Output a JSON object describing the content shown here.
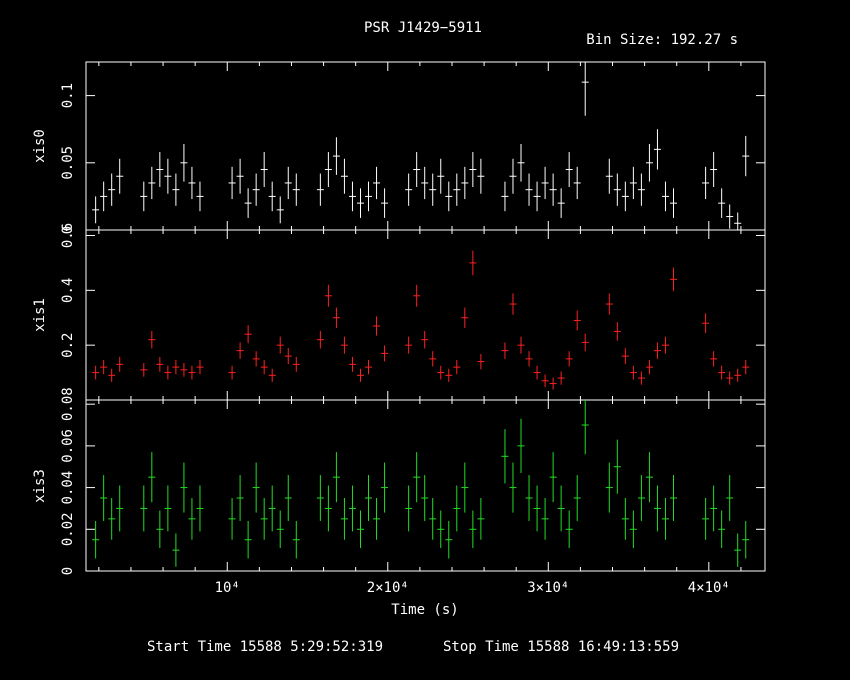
{
  "header": {
    "title": "PSR J1429−5911",
    "bin_size": "Bin Size: 192.27 s"
  },
  "footer": {
    "start_time": "Start Time 15588  5:29:52:319",
    "stop_time": "Stop Time 15588 16:49:13:559"
  },
  "colors": {
    "xis0": "#ffffff",
    "xis1": "#ff2020",
    "xis3": "#22dd22",
    "axes": "#ffffff",
    "background": "#000000"
  },
  "chart_data": {
    "type": "scatter",
    "title": "PSR J1429−5911",
    "subtitle": "Bin Size: 192.27 s",
    "xlabel": "Time (s)",
    "xlim": [
      1200,
      43500
    ],
    "x_ticks": [
      {
        "value": 10000,
        "label": "10⁴"
      },
      {
        "value": 20000,
        "label": "2×10⁴"
      },
      {
        "value": 30000,
        "label": "3×10⁴"
      },
      {
        "value": 40000,
        "label": "4×10⁴"
      }
    ],
    "legend": "none",
    "grid": false,
    "panels": [
      {
        "name": "xis0",
        "ylabel": "xis0",
        "ylim": [
          0,
          0.125
        ],
        "y_ticks": [
          {
            "value": 0,
            "label": "0"
          },
          {
            "value": 0.05,
            "label": "0.05"
          },
          {
            "value": 0.1,
            "label": "0.1"
          }
        ],
        "points": [
          [
            1800,
            0.015,
            0.01
          ],
          [
            2300,
            0.025,
            0.011
          ],
          [
            2800,
            0.03,
            0.012
          ],
          [
            3300,
            0.04,
            0.013
          ],
          [
            4800,
            0.025,
            0.011
          ],
          [
            5300,
            0.035,
            0.012
          ],
          [
            5800,
            0.045,
            0.013
          ],
          [
            6300,
            0.04,
            0.013
          ],
          [
            6800,
            0.03,
            0.012
          ],
          [
            7300,
            0.05,
            0.014
          ],
          [
            7800,
            0.035,
            0.012
          ],
          [
            8300,
            0.025,
            0.011
          ],
          [
            10300,
            0.035,
            0.012
          ],
          [
            10800,
            0.04,
            0.013
          ],
          [
            11300,
            0.02,
            0.011
          ],
          [
            11800,
            0.03,
            0.012
          ],
          [
            12300,
            0.045,
            0.013
          ],
          [
            12800,
            0.025,
            0.011
          ],
          [
            13300,
            0.015,
            0.01
          ],
          [
            13800,
            0.035,
            0.012
          ],
          [
            14300,
            0.03,
            0.012
          ],
          [
            15800,
            0.03,
            0.012
          ],
          [
            16300,
            0.045,
            0.013
          ],
          [
            16800,
            0.055,
            0.014
          ],
          [
            17300,
            0.04,
            0.013
          ],
          [
            17800,
            0.025,
            0.011
          ],
          [
            18300,
            0.02,
            0.011
          ],
          [
            18800,
            0.025,
            0.011
          ],
          [
            19300,
            0.035,
            0.012
          ],
          [
            19800,
            0.02,
            0.011
          ],
          [
            21300,
            0.03,
            0.012
          ],
          [
            21800,
            0.045,
            0.013
          ],
          [
            22300,
            0.035,
            0.012
          ],
          [
            22800,
            0.03,
            0.012
          ],
          [
            23300,
            0.04,
            0.013
          ],
          [
            23800,
            0.025,
            0.011
          ],
          [
            24300,
            0.03,
            0.012
          ],
          [
            24800,
            0.035,
            0.012
          ],
          [
            25300,
            0.045,
            0.013
          ],
          [
            25800,
            0.04,
            0.013
          ],
          [
            27300,
            0.025,
            0.011
          ],
          [
            27800,
            0.04,
            0.013
          ],
          [
            28300,
            0.05,
            0.014
          ],
          [
            28800,
            0.03,
            0.012
          ],
          [
            29300,
            0.025,
            0.011
          ],
          [
            29800,
            0.035,
            0.012
          ],
          [
            30300,
            0.03,
            0.012
          ],
          [
            30800,
            0.02,
            0.011
          ],
          [
            31300,
            0.045,
            0.013
          ],
          [
            31800,
            0.035,
            0.012
          ],
          [
            32300,
            0.11,
            0.025
          ],
          [
            33800,
            0.04,
            0.013
          ],
          [
            34300,
            0.03,
            0.012
          ],
          [
            34800,
            0.025,
            0.011
          ],
          [
            35300,
            0.035,
            0.012
          ],
          [
            35800,
            0.03,
            0.012
          ],
          [
            36300,
            0.05,
            0.014
          ],
          [
            36800,
            0.06,
            0.015
          ],
          [
            37300,
            0.025,
            0.011
          ],
          [
            37800,
            0.02,
            0.011
          ],
          [
            39800,
            0.035,
            0.012
          ],
          [
            40300,
            0.045,
            0.013
          ],
          [
            40800,
            0.02,
            0.011
          ],
          [
            41300,
            0.01,
            0.009
          ],
          [
            41800,
            0.005,
            0.008
          ],
          [
            42300,
            0.055,
            0.015
          ]
        ]
      },
      {
        "name": "xis1",
        "ylabel": "xis1",
        "ylim": [
          0,
          0.62
        ],
        "y_ticks": [
          {
            "value": 0.2,
            "label": "0.2"
          },
          {
            "value": 0.4,
            "label": "0.4"
          },
          {
            "value": 0.6,
            "label": "0.6"
          }
        ],
        "points": [
          [
            1800,
            0.1,
            0.025
          ],
          [
            2300,
            0.12,
            0.026
          ],
          [
            2800,
            0.09,
            0.024
          ],
          [
            3300,
            0.13,
            0.027
          ],
          [
            4800,
            0.11,
            0.025
          ],
          [
            5300,
            0.22,
            0.032
          ],
          [
            5800,
            0.13,
            0.027
          ],
          [
            6300,
            0.1,
            0.025
          ],
          [
            6800,
            0.12,
            0.026
          ],
          [
            7300,
            0.11,
            0.025
          ],
          [
            7800,
            0.1,
            0.025
          ],
          [
            8300,
            0.12,
            0.026
          ],
          [
            10300,
            0.1,
            0.025
          ],
          [
            10800,
            0.18,
            0.03
          ],
          [
            11300,
            0.24,
            0.033
          ],
          [
            11800,
            0.15,
            0.028
          ],
          [
            12300,
            0.12,
            0.026
          ],
          [
            12800,
            0.09,
            0.024
          ],
          [
            13300,
            0.2,
            0.031
          ],
          [
            13800,
            0.16,
            0.029
          ],
          [
            14300,
            0.13,
            0.027
          ],
          [
            15800,
            0.22,
            0.032
          ],
          [
            16300,
            0.38,
            0.04
          ],
          [
            16800,
            0.3,
            0.037
          ],
          [
            17300,
            0.2,
            0.031
          ],
          [
            17800,
            0.13,
            0.027
          ],
          [
            18300,
            0.09,
            0.024
          ],
          [
            18800,
            0.12,
            0.026
          ],
          [
            19300,
            0.27,
            0.035
          ],
          [
            19800,
            0.17,
            0.029
          ],
          [
            21300,
            0.2,
            0.031
          ],
          [
            21800,
            0.38,
            0.04
          ],
          [
            22300,
            0.22,
            0.032
          ],
          [
            22800,
            0.15,
            0.028
          ],
          [
            23300,
            0.1,
            0.025
          ],
          [
            23800,
            0.09,
            0.024
          ],
          [
            24300,
            0.12,
            0.026
          ],
          [
            24800,
            0.3,
            0.037
          ],
          [
            25300,
            0.5,
            0.045
          ],
          [
            25800,
            0.14,
            0.028
          ],
          [
            27300,
            0.18,
            0.03
          ],
          [
            27800,
            0.35,
            0.039
          ],
          [
            28300,
            0.2,
            0.031
          ],
          [
            28800,
            0.15,
            0.028
          ],
          [
            29300,
            0.1,
            0.025
          ],
          [
            29800,
            0.07,
            0.023
          ],
          [
            30300,
            0.06,
            0.022
          ],
          [
            30800,
            0.08,
            0.024
          ],
          [
            31300,
            0.15,
            0.028
          ],
          [
            31800,
            0.29,
            0.036
          ],
          [
            32300,
            0.21,
            0.032
          ],
          [
            33800,
            0.35,
            0.039
          ],
          [
            34300,
            0.25,
            0.034
          ],
          [
            34800,
            0.16,
            0.029
          ],
          [
            35300,
            0.1,
            0.025
          ],
          [
            35800,
            0.08,
            0.024
          ],
          [
            36300,
            0.12,
            0.026
          ],
          [
            36800,
            0.18,
            0.03
          ],
          [
            37300,
            0.2,
            0.031
          ],
          [
            37800,
            0.44,
            0.043
          ],
          [
            39800,
            0.28,
            0.036
          ],
          [
            40300,
            0.15,
            0.028
          ],
          [
            40800,
            0.1,
            0.025
          ],
          [
            41300,
            0.08,
            0.024
          ],
          [
            41800,
            0.09,
            0.024
          ],
          [
            42300,
            0.12,
            0.026
          ]
        ]
      },
      {
        "name": "xis3",
        "ylabel": "xis3",
        "ylim": [
          0,
          0.082
        ],
        "y_ticks": [
          {
            "value": 0,
            "label": "0"
          },
          {
            "value": 0.02,
            "label": "0.02"
          },
          {
            "value": 0.04,
            "label": "0.04"
          },
          {
            "value": 0.06,
            "label": "0.06"
          },
          {
            "value": 0.08,
            "label": "0.08"
          }
        ],
        "points": [
          [
            1800,
            0.015,
            0.009
          ],
          [
            2300,
            0.035,
            0.011
          ],
          [
            2800,
            0.025,
            0.01
          ],
          [
            3300,
            0.03,
            0.011
          ],
          [
            4800,
            0.03,
            0.011
          ],
          [
            5300,
            0.045,
            0.012
          ],
          [
            5800,
            0.02,
            0.009
          ],
          [
            6300,
            0.03,
            0.011
          ],
          [
            6800,
            0.01,
            0.008
          ],
          [
            7300,
            0.04,
            0.012
          ],
          [
            7800,
            0.025,
            0.01
          ],
          [
            8300,
            0.03,
            0.011
          ],
          [
            10300,
            0.025,
            0.01
          ],
          [
            10800,
            0.035,
            0.011
          ],
          [
            11300,
            0.015,
            0.009
          ],
          [
            11800,
            0.04,
            0.012
          ],
          [
            12300,
            0.025,
            0.01
          ],
          [
            12800,
            0.03,
            0.011
          ],
          [
            13300,
            0.02,
            0.009
          ],
          [
            13800,
            0.035,
            0.011
          ],
          [
            14300,
            0.015,
            0.009
          ],
          [
            15800,
            0.035,
            0.011
          ],
          [
            16300,
            0.03,
            0.011
          ],
          [
            16800,
            0.045,
            0.012
          ],
          [
            17300,
            0.025,
            0.01
          ],
          [
            17800,
            0.03,
            0.011
          ],
          [
            18300,
            0.02,
            0.009
          ],
          [
            18800,
            0.035,
            0.011
          ],
          [
            19300,
            0.025,
            0.01
          ],
          [
            19800,
            0.04,
            0.012
          ],
          [
            21300,
            0.03,
            0.011
          ],
          [
            21800,
            0.045,
            0.012
          ],
          [
            22300,
            0.035,
            0.011
          ],
          [
            22800,
            0.025,
            0.01
          ],
          [
            23300,
            0.02,
            0.009
          ],
          [
            23800,
            0.015,
            0.009
          ],
          [
            24300,
            0.03,
            0.011
          ],
          [
            24800,
            0.04,
            0.012
          ],
          [
            25300,
            0.02,
            0.009
          ],
          [
            25800,
            0.025,
            0.01
          ],
          [
            27300,
            0.055,
            0.013
          ],
          [
            27800,
            0.04,
            0.012
          ],
          [
            28300,
            0.06,
            0.013
          ],
          [
            28800,
            0.035,
            0.011
          ],
          [
            29300,
            0.03,
            0.011
          ],
          [
            29800,
            0.025,
            0.01
          ],
          [
            30300,
            0.045,
            0.012
          ],
          [
            30800,
            0.03,
            0.011
          ],
          [
            31300,
            0.02,
            0.009
          ],
          [
            31800,
            0.035,
            0.011
          ],
          [
            32300,
            0.07,
            0.014
          ],
          [
            33800,
            0.04,
            0.012
          ],
          [
            34300,
            0.05,
            0.013
          ],
          [
            34800,
            0.025,
            0.01
          ],
          [
            35300,
            0.02,
            0.009
          ],
          [
            35800,
            0.035,
            0.011
          ],
          [
            36300,
            0.045,
            0.012
          ],
          [
            36800,
            0.03,
            0.011
          ],
          [
            37300,
            0.025,
            0.01
          ],
          [
            37800,
            0.035,
            0.011
          ],
          [
            39800,
            0.025,
            0.01
          ],
          [
            40300,
            0.03,
            0.011
          ],
          [
            40800,
            0.02,
            0.009
          ],
          [
            41300,
            0.035,
            0.011
          ],
          [
            41800,
            0.01,
            0.008
          ],
          [
            42300,
            0.015,
            0.009
          ]
        ]
      }
    ]
  }
}
